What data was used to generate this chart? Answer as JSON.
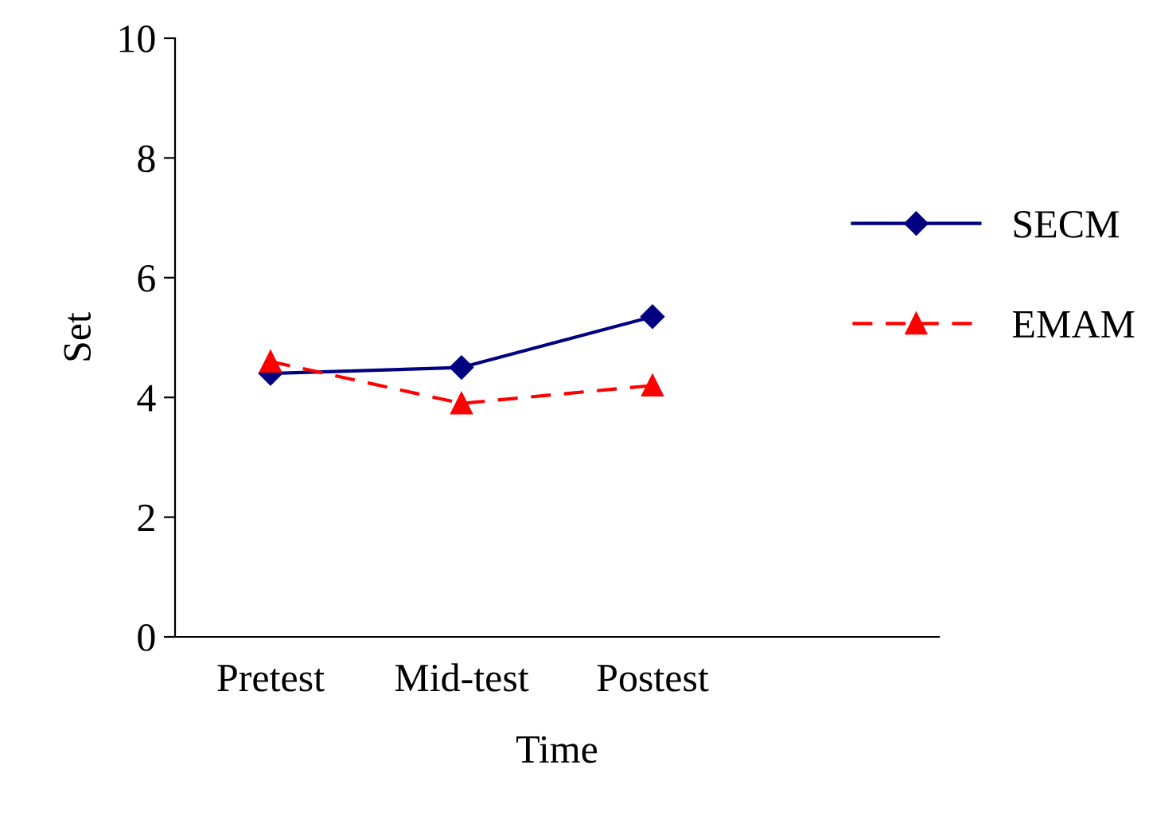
{
  "chart_data": {
    "type": "line",
    "xlabel": "Time",
    "ylabel": "Set",
    "categories": [
      "Pretest",
      "Mid-test",
      "Postest",
      null
    ],
    "series": [
      {
        "name": "SECM",
        "color": "#000080",
        "values": [
          4.4,
          4.5,
          5.35,
          null
        ],
        "marker": "diamond",
        "line_style": "solid"
      },
      {
        "name": "EMAM",
        "color": "#ff0000",
        "values": [
          4.6,
          3.9,
          4.2,
          null
        ],
        "marker": "triangle",
        "line_style": "dashed"
      }
    ],
    "ylim": [
      0,
      10
    ],
    "yticks": [
      0,
      2,
      4,
      6,
      8,
      10
    ],
    "grid": false,
    "legend": "right"
  }
}
